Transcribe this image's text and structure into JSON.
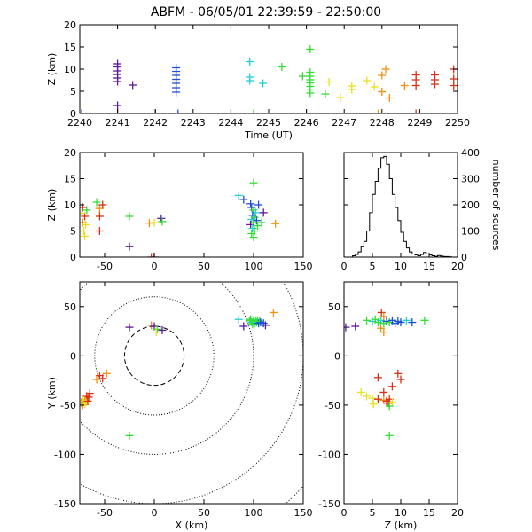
{
  "title": "ABFM - 06/05/01 22:39:59 - 22:50:00",
  "colors": {
    "purple": "#5a1a9a",
    "blue": "#1f4fd8",
    "cyan": "#22d0d0",
    "green": "#33dd33",
    "yellow": "#e8e020",
    "orange": "#f09010",
    "red": "#d83018",
    "black": "#000000"
  },
  "chart_data": [
    {
      "id": "time_height",
      "type": "scatter",
      "xlabel": "Time (UT)",
      "ylabel": "Z (km)",
      "xlim": [
        2240,
        2250
      ],
      "ylim": [
        0,
        20
      ],
      "xticks": [
        "2240",
        "2241",
        "2242",
        "2243",
        "2244",
        "2245",
        "2246",
        "2247",
        "2248",
        "2249",
        "2250"
      ],
      "yticks": [
        "0",
        "5",
        "10",
        "15",
        "20"
      ],
      "marker": "plus",
      "points": [
        {
          "x": 2240.05,
          "y": 0,
          "c": "purple"
        },
        {
          "x": 2241.0,
          "y": 0,
          "c": "purple"
        },
        {
          "x": 2241.0,
          "y": 1.8,
          "c": "purple"
        },
        {
          "x": 2241.0,
          "y": 11.2,
          "c": "purple"
        },
        {
          "x": 2241.0,
          "y": 10.5,
          "c": "purple"
        },
        {
          "x": 2241.0,
          "y": 9.6,
          "c": "purple"
        },
        {
          "x": 2241.0,
          "y": 8.8,
          "c": "purple"
        },
        {
          "x": 2241.0,
          "y": 8.0,
          "c": "purple"
        },
        {
          "x": 2241.0,
          "y": 7.2,
          "c": "purple"
        },
        {
          "x": 2241.4,
          "y": 6.4,
          "c": "purple"
        },
        {
          "x": 2242.0,
          "y": 0,
          "c": "purple"
        },
        {
          "x": 2242.6,
          "y": 0,
          "c": "blue"
        },
        {
          "x": 2242.55,
          "y": 10.3,
          "c": "blue"
        },
        {
          "x": 2242.55,
          "y": 9.5,
          "c": "blue"
        },
        {
          "x": 2242.55,
          "y": 8.6,
          "c": "blue"
        },
        {
          "x": 2242.55,
          "y": 7.7,
          "c": "blue"
        },
        {
          "x": 2242.55,
          "y": 6.8,
          "c": "blue"
        },
        {
          "x": 2242.55,
          "y": 5.8,
          "c": "blue"
        },
        {
          "x": 2242.55,
          "y": 4.8,
          "c": "blue"
        },
        {
          "x": 2244.0,
          "y": 0,
          "c": "cyan"
        },
        {
          "x": 2244.5,
          "y": 11.7,
          "c": "cyan"
        },
        {
          "x": 2244.5,
          "y": 8.2,
          "c": "cyan"
        },
        {
          "x": 2244.5,
          "y": 7.4,
          "c": "cyan"
        },
        {
          "x": 2244.85,
          "y": 6.8,
          "c": "cyan"
        },
        {
          "x": 2244.6,
          "y": 0,
          "c": "green"
        },
        {
          "x": 2245.35,
          "y": 10.5,
          "c": "green"
        },
        {
          "x": 2245.9,
          "y": 8.4,
          "c": "green"
        },
        {
          "x": 2246.0,
          "y": 0,
          "c": "green"
        },
        {
          "x": 2246.1,
          "y": 14.5,
          "c": "green"
        },
        {
          "x": 2246.1,
          "y": 9.3,
          "c": "green"
        },
        {
          "x": 2246.1,
          "y": 8.4,
          "c": "green"
        },
        {
          "x": 2246.1,
          "y": 7.6,
          "c": "green"
        },
        {
          "x": 2246.1,
          "y": 6.9,
          "c": "green"
        },
        {
          "x": 2246.1,
          "y": 6.1,
          "c": "green"
        },
        {
          "x": 2246.1,
          "y": 5.3,
          "c": "green"
        },
        {
          "x": 2246.1,
          "y": 4.6,
          "c": "green"
        },
        {
          "x": 2246.5,
          "y": 4.4,
          "c": "green"
        },
        {
          "x": 2246.6,
          "y": 7.1,
          "c": "yellow"
        },
        {
          "x": 2246.9,
          "y": 3.6,
          "c": "yellow"
        },
        {
          "x": 2247.2,
          "y": 6.2,
          "c": "yellow"
        },
        {
          "x": 2247.2,
          "y": 5.4,
          "c": "yellow"
        },
        {
          "x": 2247.6,
          "y": 7.4,
          "c": "yellow"
        },
        {
          "x": 2247.8,
          "y": 6.0,
          "c": "yellow"
        },
        {
          "x": 2247.9,
          "y": 0,
          "c": "orange"
        },
        {
          "x": 2248.1,
          "y": 10.0,
          "c": "orange"
        },
        {
          "x": 2248.0,
          "y": 8.6,
          "c": "orange"
        },
        {
          "x": 2248.0,
          "y": 4.9,
          "c": "orange"
        },
        {
          "x": 2248.2,
          "y": 3.5,
          "c": "orange"
        },
        {
          "x": 2248.6,
          "y": 6.3,
          "c": "orange"
        },
        {
          "x": 2248.9,
          "y": 0,
          "c": "red"
        },
        {
          "x": 2248.9,
          "y": 8.7,
          "c": "red"
        },
        {
          "x": 2248.9,
          "y": 7.6,
          "c": "red"
        },
        {
          "x": 2248.9,
          "y": 6.3,
          "c": "red"
        },
        {
          "x": 2249.4,
          "y": 8.7,
          "c": "red"
        },
        {
          "x": 2249.4,
          "y": 7.6,
          "c": "red"
        },
        {
          "x": 2249.4,
          "y": 6.6,
          "c": "red"
        },
        {
          "x": 2249.9,
          "y": 10.0,
          "c": "red"
        },
        {
          "x": 2249.9,
          "y": 7.8,
          "c": "red"
        },
        {
          "x": 2249.9,
          "y": 6.3,
          "c": "red"
        }
      ]
    },
    {
      "id": "x_height",
      "type": "scatter",
      "xlabel": "",
      "ylabel": "Z (km)",
      "xlim": [
        -75,
        150
      ],
      "ylim": [
        0,
        20
      ],
      "xticks": [
        "-50",
        "0",
        "50",
        "100",
        "150"
      ],
      "yticks": [
        "0",
        "5",
        "10",
        "15",
        "20"
      ],
      "marker": "plus",
      "points": [
        {
          "x": -72,
          "y": 9.5,
          "c": "red"
        },
        {
          "x": -70,
          "y": 7.8,
          "c": "red"
        },
        {
          "x": -72,
          "y": 6.6,
          "c": "orange"
        },
        {
          "x": -69,
          "y": 6.2,
          "c": "yellow"
        },
        {
          "x": -71,
          "y": 5.0,
          "c": "yellow"
        },
        {
          "x": -70,
          "y": 4.0,
          "c": "yellow"
        },
        {
          "x": -68,
          "y": 9.0,
          "c": "green"
        },
        {
          "x": -73,
          "y": 8.4,
          "c": "yellow"
        },
        {
          "x": -58,
          "y": 10.5,
          "c": "green"
        },
        {
          "x": -55,
          "y": 9.3,
          "c": "orange"
        },
        {
          "x": -55,
          "y": 7.8,
          "c": "red"
        },
        {
          "x": -52,
          "y": 10.0,
          "c": "red"
        },
        {
          "x": -55,
          "y": 5.0,
          "c": "red"
        },
        {
          "x": -25,
          "y": 7.8,
          "c": "green"
        },
        {
          "x": -25,
          "y": 2.0,
          "c": "purple"
        },
        {
          "x": -5,
          "y": 6.5,
          "c": "orange"
        },
        {
          "x": -3,
          "y": 0,
          "c": "red"
        },
        {
          "x": 0,
          "y": 0,
          "c": "purple"
        },
        {
          "x": 0,
          "y": 6.6,
          "c": "yellow"
        },
        {
          "x": 7,
          "y": 7.4,
          "c": "purple"
        },
        {
          "x": 8,
          "y": 6.8,
          "c": "green"
        },
        {
          "x": 85,
          "y": 11.8,
          "c": "cyan"
        },
        {
          "x": 90,
          "y": 11.0,
          "c": "blue"
        },
        {
          "x": 97,
          "y": 10.2,
          "c": "blue"
        },
        {
          "x": 100,
          "y": 14.2,
          "c": "green"
        },
        {
          "x": 98,
          "y": 9.5,
          "c": "blue"
        },
        {
          "x": 100,
          "y": 9.0,
          "c": "green"
        },
        {
          "x": 102,
          "y": 8.5,
          "c": "cyan"
        },
        {
          "x": 99,
          "y": 8.0,
          "c": "blue"
        },
        {
          "x": 101,
          "y": 7.6,
          "c": "green"
        },
        {
          "x": 98,
          "y": 7.2,
          "c": "cyan"
        },
        {
          "x": 103,
          "y": 7.0,
          "c": "blue"
        },
        {
          "x": 100,
          "y": 6.6,
          "c": "green"
        },
        {
          "x": 97,
          "y": 6.2,
          "c": "purple"
        },
        {
          "x": 104,
          "y": 6.0,
          "c": "green"
        },
        {
          "x": 99,
          "y": 5.5,
          "c": "cyan"
        },
        {
          "x": 101,
          "y": 5.0,
          "c": "green"
        },
        {
          "x": 98,
          "y": 4.5,
          "c": "green"
        },
        {
          "x": 100,
          "y": 3.8,
          "c": "green"
        },
        {
          "x": 108,
          "y": 6.6,
          "c": "green"
        },
        {
          "x": 110,
          "y": 8.5,
          "c": "purple"
        },
        {
          "x": 105,
          "y": 10.0,
          "c": "blue"
        },
        {
          "x": 122,
          "y": 6.4,
          "c": "orange"
        }
      ]
    },
    {
      "id": "histogram",
      "type": "bar",
      "xlabel": "",
      "ylabel": "number of sources",
      "xlim": [
        0,
        20
      ],
      "ylim": [
        0,
        400
      ],
      "xticks": [
        "0",
        "5",
        "10",
        "15",
        "20"
      ],
      "yticks": [
        "0",
        "100",
        "200",
        "300",
        "400"
      ],
      "bin_width": 0.5,
      "bin_start": 0,
      "values": [
        0,
        0,
        0,
        5,
        10,
        20,
        40,
        60,
        100,
        170,
        240,
        290,
        340,
        380,
        385,
        355,
        300,
        240,
        190,
        140,
        95,
        60,
        35,
        20,
        12,
        8,
        5,
        10,
        18,
        12,
        8,
        5,
        3,
        6,
        4,
        2,
        2,
        1,
        0,
        0
      ]
    },
    {
      "id": "plan_view",
      "type": "scatter",
      "xlabel": "X (km)",
      "ylabel": "Y (km)",
      "xlim": [
        -75,
        150
      ],
      "ylim": [
        -150,
        75
      ],
      "xticks": [
        "-50",
        "0",
        "50",
        "100",
        "150"
      ],
      "yticks": [
        "-150",
        "-100",
        "-50",
        "0",
        "50"
      ],
      "range_rings_km": [
        30,
        60,
        100,
        150,
        200
      ],
      "marker": "plus",
      "points": [
        {
          "x": 120,
          "y": 44,
          "c": "orange"
        },
        {
          "x": 85,
          "y": 37,
          "c": "cyan"
        },
        {
          "x": 90,
          "y": 30,
          "c": "purple"
        },
        {
          "x": 96,
          "y": 36,
          "c": "green"
        },
        {
          "x": 98,
          "y": 34,
          "c": "cyan"
        },
        {
          "x": 100,
          "y": 36,
          "c": "green"
        },
        {
          "x": 101,
          "y": 33,
          "c": "green"
        },
        {
          "x": 102,
          "y": 35,
          "c": "green"
        },
        {
          "x": 103,
          "y": 34,
          "c": "cyan"
        },
        {
          "x": 104,
          "y": 36,
          "c": "green"
        },
        {
          "x": 105,
          "y": 33,
          "c": "blue"
        },
        {
          "x": 106,
          "y": 35,
          "c": "green"
        },
        {
          "x": 107,
          "y": 34,
          "c": "blue"
        },
        {
          "x": 99,
          "y": 32,
          "c": "green"
        },
        {
          "x": 97,
          "y": 37,
          "c": "green"
        },
        {
          "x": 110,
          "y": 33,
          "c": "blue"
        },
        {
          "x": 112,
          "y": 31,
          "c": "purple"
        },
        {
          "x": -25,
          "y": 29,
          "c": "purple"
        },
        {
          "x": -3,
          "y": 31,
          "c": "orange"
        },
        {
          "x": 0,
          "y": 30,
          "c": "purple"
        },
        {
          "x": 3,
          "y": 27,
          "c": "green"
        },
        {
          "x": 8,
          "y": 26,
          "c": "purple"
        },
        {
          "x": 2,
          "y": 24,
          "c": "yellow"
        },
        {
          "x": -25,
          "y": -81,
          "c": "green"
        },
        {
          "x": -48,
          "y": -18,
          "c": "orange"
        },
        {
          "x": -55,
          "y": -20,
          "c": "red"
        },
        {
          "x": -52,
          "y": -23,
          "c": "red"
        },
        {
          "x": -58,
          "y": -24,
          "c": "orange"
        },
        {
          "x": -65,
          "y": -38,
          "c": "red"
        },
        {
          "x": -66,
          "y": -42,
          "c": "red"
        },
        {
          "x": -68,
          "y": -41,
          "c": "red"
        },
        {
          "x": -70,
          "y": -44,
          "c": "orange"
        },
        {
          "x": -72,
          "y": -45,
          "c": "yellow"
        },
        {
          "x": -71,
          "y": -47,
          "c": "yellow"
        },
        {
          "x": -73,
          "y": -48,
          "c": "red"
        },
        {
          "x": -72,
          "y": -50,
          "c": "orange"
        },
        {
          "x": -70,
          "y": -49,
          "c": "yellow"
        },
        {
          "x": -67,
          "y": -46,
          "c": "red"
        }
      ]
    },
    {
      "id": "z_y",
      "type": "scatter",
      "xlabel": "Z (km)",
      "ylabel": "",
      "xlim": [
        0,
        20
      ],
      "ylim": [
        -150,
        75
      ],
      "xticks": [
        "0",
        "5",
        "10",
        "15",
        "20"
      ],
      "yticks": [
        "-150",
        "-100",
        "-50",
        "0",
        "50"
      ],
      "marker": "plus",
      "points": [
        {
          "x": 0.3,
          "y": 29,
          "c": "purple"
        },
        {
          "x": 2.0,
          "y": 30,
          "c": "purple"
        },
        {
          "x": 4.0,
          "y": 36,
          "c": "green"
        },
        {
          "x": 5.0,
          "y": 35,
          "c": "cyan"
        },
        {
          "x": 5.5,
          "y": 37,
          "c": "green"
        },
        {
          "x": 6.0,
          "y": 34,
          "c": "green"
        },
        {
          "x": 6.5,
          "y": 36,
          "c": "cyan"
        },
        {
          "x": 7.0,
          "y": 33,
          "c": "green"
        },
        {
          "x": 7.5,
          "y": 35,
          "c": "blue"
        },
        {
          "x": 8.0,
          "y": 34,
          "c": "green"
        },
        {
          "x": 8.5,
          "y": 36,
          "c": "blue"
        },
        {
          "x": 9.0,
          "y": 33,
          "c": "blue"
        },
        {
          "x": 9.5,
          "y": 35,
          "c": "blue"
        },
        {
          "x": 10.0,
          "y": 34,
          "c": "blue"
        },
        {
          "x": 11.0,
          "y": 36,
          "c": "cyan"
        },
        {
          "x": 12.0,
          "y": 34,
          "c": "blue"
        },
        {
          "x": 14.2,
          "y": 36,
          "c": "green"
        },
        {
          "x": 6.6,
          "y": 44,
          "c": "red"
        },
        {
          "x": 7.0,
          "y": 40,
          "c": "orange"
        },
        {
          "x": 6.5,
          "y": 28,
          "c": "orange"
        },
        {
          "x": 7.0,
          "y": 24,
          "c": "orange"
        },
        {
          "x": 6.0,
          "y": -22,
          "c": "red"
        },
        {
          "x": 9.5,
          "y": -18,
          "c": "red"
        },
        {
          "x": 10.0,
          "y": -24,
          "c": "red"
        },
        {
          "x": 8.5,
          "y": -31,
          "c": "red"
        },
        {
          "x": 7.0,
          "y": -37,
          "c": "red"
        },
        {
          "x": 3.0,
          "y": -37,
          "c": "yellow"
        },
        {
          "x": 4.0,
          "y": -41,
          "c": "yellow"
        },
        {
          "x": 5.0,
          "y": -43,
          "c": "yellow"
        },
        {
          "x": 6.0,
          "y": -44,
          "c": "red"
        },
        {
          "x": 7.0,
          "y": -45,
          "c": "orange"
        },
        {
          "x": 7.5,
          "y": -46,
          "c": "red"
        },
        {
          "x": 8.0,
          "y": -44,
          "c": "red"
        },
        {
          "x": 8.5,
          "y": -47,
          "c": "yellow"
        },
        {
          "x": 7.8,
          "y": -48,
          "c": "red"
        },
        {
          "x": 5.2,
          "y": -49,
          "c": "yellow"
        },
        {
          "x": 8.0,
          "y": -51,
          "c": "green"
        },
        {
          "x": 8.0,
          "y": -81,
          "c": "green"
        }
      ]
    }
  ]
}
